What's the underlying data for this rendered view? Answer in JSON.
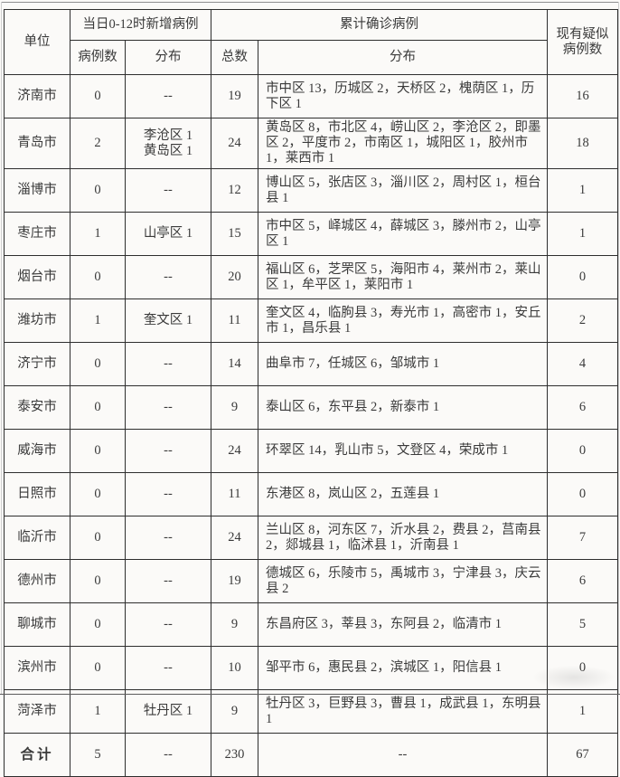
{
  "colors": {
    "border": "#2e2e2e",
    "text": "#3a3a3a",
    "background": "#fbfaf8"
  },
  "table": {
    "headers": {
      "unit": "单位",
      "new_group": "当日0-12时新增病例",
      "cum_group": "累计确诊病例",
      "suspected": "现有疑似病例数",
      "new_count": "病例数",
      "new_dist": "分布",
      "cum_total": "总数",
      "cum_dist": "分布"
    },
    "rows": [
      {
        "city": "济南市",
        "new_count": "0",
        "new_dist": "--",
        "total": "19",
        "dist": "市中区 13，历城区 2，天桥区 2，槐荫区 1，历下区 1",
        "suspected": "16"
      },
      {
        "city": "青岛市",
        "new_count": "2",
        "new_dist": "李沧区 1\n黄岛区 1",
        "total": "24",
        "dist": "黄岛区 8，市北区 4，崂山区 2，李沧区 2，即墨区 2，平度市 2，市南区 1，城阳区 1，胶州市 1，莱西市 1",
        "suspected": "18"
      },
      {
        "city": "淄博市",
        "new_count": "0",
        "new_dist": "--",
        "total": "12",
        "dist": "博山区 5，张店区 3，淄川区 2，周村区 1，桓台县 1",
        "suspected": "1"
      },
      {
        "city": "枣庄市",
        "new_count": "1",
        "new_dist": "山亭区 1",
        "total": "15",
        "dist": "市中区 5，峄城区 4，薛城区 3，滕州市 2，山亭区 1",
        "suspected": "1"
      },
      {
        "city": "烟台市",
        "new_count": "0",
        "new_dist": "--",
        "total": "20",
        "dist": "福山区 6，芝罘区 5，海阳市 4，莱州市 2，莱山区 1，牟平区 1，莱阳市 1",
        "suspected": "0"
      },
      {
        "city": "潍坊市",
        "new_count": "1",
        "new_dist": "奎文区 1",
        "total": "11",
        "dist": "奎文区 4，临朐县 3，寿光市 1，高密市 1，安丘市 1，昌乐县 1",
        "suspected": "2"
      },
      {
        "city": "济宁市",
        "new_count": "0",
        "new_dist": "--",
        "total": "14",
        "dist": "曲阜市 7，任城区 6，邹城市 1",
        "suspected": "4"
      },
      {
        "city": "泰安市",
        "new_count": "0",
        "new_dist": "--",
        "total": "9",
        "dist": "泰山区 6，东平县 2，新泰市 1",
        "suspected": "6"
      },
      {
        "city": "威海市",
        "new_count": "0",
        "new_dist": "--",
        "total": "24",
        "dist": "环翠区 14，乳山市 5，文登区 4，荣成市 1",
        "suspected": "0"
      },
      {
        "city": "日照市",
        "new_count": "0",
        "new_dist": "--",
        "total": "11",
        "dist": "东港区 8，岚山区 2，五莲县 1",
        "suspected": "0"
      },
      {
        "city": "临沂市",
        "new_count": "0",
        "new_dist": "--",
        "total": "24",
        "dist": "兰山区 8，河东区 7，沂水县 2，费县 2，莒南县 2，郯城县 1，临沭县 1，沂南县 1",
        "suspected": "7"
      },
      {
        "city": "德州市",
        "new_count": "0",
        "new_dist": "--",
        "total": "19",
        "dist": "德城区 6，乐陵市 5，禹城市 3，宁津县 3，庆云县 2",
        "suspected": "6"
      },
      {
        "city": "聊城市",
        "new_count": "0",
        "new_dist": "--",
        "total": "9",
        "dist": "东昌府区 3，莘县 3，东阿县 2，临清市 1",
        "suspected": "5"
      },
      {
        "city": "滨州市",
        "new_count": "0",
        "new_dist": "--",
        "total": "10",
        "dist": "邹平市 6，惠民县 2，滨城区 1，阳信县 1",
        "suspected": "0"
      },
      {
        "city": "菏泽市",
        "new_count": "1",
        "new_dist": "牡丹区 1",
        "total": "9",
        "dist": "牡丹区 3，巨野县 3，曹县 1，成武县 1，东明县 1",
        "suspected": "1"
      }
    ],
    "total_row": {
      "city": "合计",
      "new_count": "5",
      "new_dist": "--",
      "total": "230",
      "dist": "--",
      "suspected": "67"
    }
  }
}
